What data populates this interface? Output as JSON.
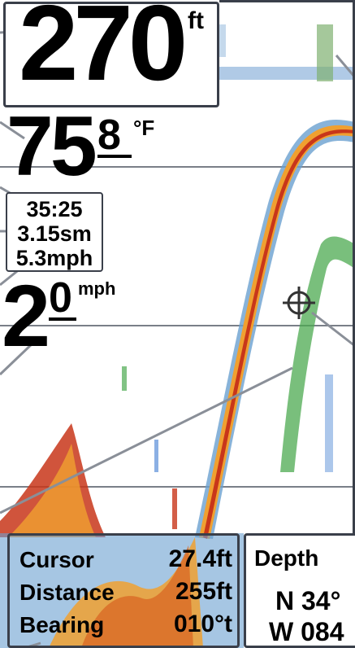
{
  "depth": {
    "value": "270",
    "unit": "ft"
  },
  "water_temp": {
    "whole": "75",
    "decimal": "8",
    "unit": "°F"
  },
  "trip": {
    "timer": "35:25",
    "distance": "3.15sm",
    "avg_speed": "5.3mph"
  },
  "speed": {
    "whole": "2",
    "decimal": "0",
    "unit": "mph"
  },
  "cursor_panel": {
    "rows": [
      {
        "label": "Cursor",
        "value": "27.4ft"
      },
      {
        "label": "Distance",
        "value": "255ft"
      },
      {
        "label": "Bearing",
        "value": "010°t"
      }
    ]
  },
  "nav_panel": {
    "label": "Depth",
    "lat": "N 34°",
    "lon": "W 084"
  },
  "icons": [
    "cursor-crosshair-icon"
  ],
  "colors": {
    "frame": "#3a3f4a",
    "bottom_red": "#c8361a",
    "bottom_orange": "#f0a030",
    "return_green": "#4caa50",
    "return_blue": "#5a8fd8"
  }
}
